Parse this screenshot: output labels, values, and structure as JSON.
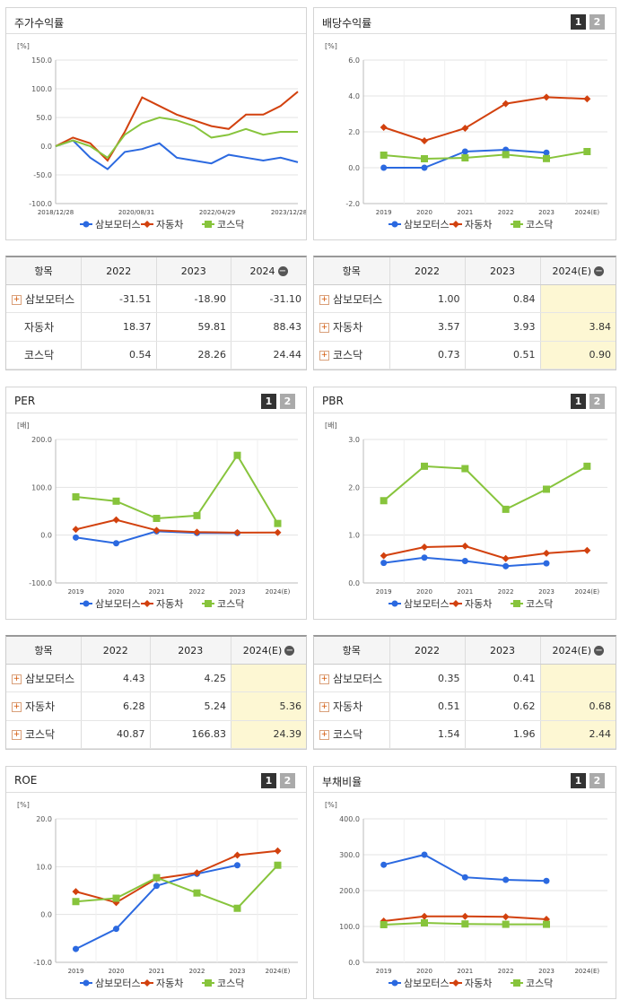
{
  "legend": [
    "삼보모터스",
    "자동차",
    "코스닥"
  ],
  "colors": {
    "s": "#2b69e0",
    "a": "#d2410e",
    "k": "#87c43c"
  },
  "btn1": "1",
  "btn2": "2",
  "charts": {
    "stock": {
      "title": "주가수익률",
      "unit": "[%]",
      "y_ticks": [
        "150.0",
        "100.0",
        "50.0",
        "0.0",
        "-50.0",
        "-100.0"
      ],
      "x_ticks": [
        "2018/12/28",
        "2020/08/31",
        "2022/04/29",
        "2023/12/28"
      ]
    },
    "div": {
      "title": "배당수익률",
      "unit": "[%]",
      "y_ticks": [
        "6.0",
        "4.0",
        "2.0",
        "0.0",
        "-2.0"
      ],
      "x_ticks": [
        "2019",
        "2020",
        "2021",
        "2022",
        "2023",
        "2024(E)"
      ]
    },
    "per": {
      "title": "PER",
      "unit": "[배]",
      "y_ticks": [
        "200.0",
        "100.0",
        "0.0",
        "-100.0"
      ],
      "x_ticks": [
        "2019",
        "2020",
        "2021",
        "2022",
        "2023",
        "2024(E)"
      ]
    },
    "pbr": {
      "title": "PBR",
      "unit": "[배]",
      "y_ticks": [
        "3.0",
        "2.0",
        "1.0",
        "0.0"
      ],
      "x_ticks": [
        "2019",
        "2020",
        "2021",
        "2022",
        "2023",
        "2024(E)"
      ]
    },
    "roe": {
      "title": "ROE",
      "unit": "[%]",
      "y_ticks": [
        "20.0",
        "10.0",
        "0.0",
        "-10.0"
      ],
      "x_ticks": [
        "2019",
        "2020",
        "2021",
        "2022",
        "2023",
        "2024(E)"
      ]
    },
    "debt": {
      "title": "부채비율",
      "unit": "[%]",
      "y_ticks": [
        "400.0",
        "300.0",
        "200.0",
        "100.0",
        "0.0"
      ],
      "x_ticks": [
        "2019",
        "2020",
        "2021",
        "2022",
        "2023",
        "2024(E)"
      ]
    }
  },
  "tables": {
    "stock": {
      "head": [
        "항목",
        "2022",
        "2023",
        "2024"
      ],
      "rows": [
        [
          "삼보모터스",
          "-31.51",
          "-18.90",
          "-31.10"
        ],
        [
          "자동차",
          "18.37",
          "59.81",
          "88.43"
        ],
        [
          "코스닥",
          "0.54",
          "28.26",
          "24.44"
        ]
      ]
    },
    "div": {
      "head": [
        "항목",
        "2022",
        "2023",
        "2024(E)"
      ],
      "rows": [
        [
          "삼보모터스",
          "1.00",
          "0.84",
          ""
        ],
        [
          "자동차",
          "3.57",
          "3.93",
          "3.84"
        ],
        [
          "코스닥",
          "0.73",
          "0.51",
          "0.90"
        ]
      ]
    },
    "per": {
      "head": [
        "항목",
        "2022",
        "2023",
        "2024(E)"
      ],
      "rows": [
        [
          "삼보모터스",
          "4.43",
          "4.25",
          ""
        ],
        [
          "자동차",
          "6.28",
          "5.24",
          "5.36"
        ],
        [
          "코스닥",
          "40.87",
          "166.83",
          "24.39"
        ]
      ]
    },
    "pbr": {
      "head": [
        "항목",
        "2022",
        "2023",
        "2024(E)"
      ],
      "rows": [
        [
          "삼보모터스",
          "0.35",
          "0.41",
          ""
        ],
        [
          "자동차",
          "0.51",
          "0.62",
          "0.68"
        ],
        [
          "코스닥",
          "1.54",
          "1.96",
          "2.44"
        ]
      ]
    }
  },
  "chart_data": [
    {
      "type": "line",
      "title": "주가수익률",
      "ylabel": "[%]",
      "ylim": [
        -100,
        150
      ],
      "x": [
        "2018/12/28",
        "2019/06",
        "2019/12",
        "2020/03",
        "2020/08/31",
        "2021/01",
        "2021/06",
        "2021/12",
        "2022/04/29",
        "2022/09",
        "2023/03",
        "2023/07",
        "2023/12/28",
        "2024/03",
        "2024/06"
      ],
      "series": [
        {
          "name": "삼보모터스",
          "values": [
            0,
            10,
            -20,
            -40,
            -10,
            -5,
            5,
            -20,
            -25,
            -30,
            -15,
            -20,
            -25,
            -20,
            -28
          ]
        },
        {
          "name": "자동차",
          "values": [
            0,
            15,
            5,
            -25,
            25,
            85,
            70,
            55,
            45,
            35,
            30,
            55,
            55,
            70,
            95
          ]
        },
        {
          "name": "코스닥",
          "values": [
            0,
            10,
            0,
            -20,
            20,
            40,
            50,
            45,
            35,
            15,
            20,
            30,
            20,
            25,
            25
          ]
        }
      ]
    },
    {
      "type": "line",
      "title": "배당수익률",
      "ylabel": "[%]",
      "ylim": [
        -2,
        6
      ],
      "x": [
        "2019",
        "2020",
        "2021",
        "2022",
        "2023",
        "2024(E)"
      ],
      "series": [
        {
          "name": "삼보모터스",
          "values": [
            0.0,
            0.0,
            0.9,
            1.0,
            0.84,
            null
          ]
        },
        {
          "name": "자동차",
          "values": [
            2.25,
            1.5,
            2.2,
            3.57,
            3.93,
            3.84
          ]
        },
        {
          "name": "코스닥",
          "values": [
            0.7,
            0.5,
            0.55,
            0.73,
            0.51,
            0.9
          ]
        }
      ]
    },
    {
      "type": "line",
      "title": "PER",
      "ylabel": "[배]",
      "ylim": [
        -100,
        200
      ],
      "x": [
        "2019",
        "2020",
        "2021",
        "2022",
        "2023",
        "2024(E)"
      ],
      "series": [
        {
          "name": "삼보모터스",
          "values": [
            -5,
            -17,
            8,
            4.43,
            4.25,
            null
          ]
        },
        {
          "name": "자동차",
          "values": [
            12,
            32,
            10,
            6.28,
            5.24,
            5.36
          ]
        },
        {
          "name": "코스닥",
          "values": [
            80,
            71,
            35,
            40.87,
            166.83,
            24.39
          ]
        }
      ]
    },
    {
      "type": "line",
      "title": "PBR",
      "ylabel": "[배]",
      "ylim": [
        0,
        3
      ],
      "x": [
        "2019",
        "2020",
        "2021",
        "2022",
        "2023",
        "2024(E)"
      ],
      "series": [
        {
          "name": "삼보모터스",
          "values": [
            0.42,
            0.53,
            0.46,
            0.35,
            0.41,
            null
          ]
        },
        {
          "name": "자동차",
          "values": [
            0.57,
            0.75,
            0.77,
            0.51,
            0.62,
            0.68
          ]
        },
        {
          "name": "코스닥",
          "values": [
            1.72,
            2.44,
            2.39,
            1.54,
            1.96,
            2.44
          ]
        }
      ]
    },
    {
      "type": "line",
      "title": "ROE",
      "ylabel": "[%]",
      "ylim": [
        -10,
        20
      ],
      "x": [
        "2019",
        "2020",
        "2021",
        "2022",
        "2023",
        "2024(E)"
      ],
      "series": [
        {
          "name": "삼보모터스",
          "values": [
            -7.2,
            -3.0,
            6.0,
            8.5,
            10.3,
            null
          ]
        },
        {
          "name": "자동차",
          "values": [
            4.8,
            2.5,
            7.5,
            8.7,
            12.4,
            13.3
          ]
        },
        {
          "name": "코스닥",
          "values": [
            2.7,
            3.4,
            7.7,
            4.5,
            1.3,
            10.3
          ]
        }
      ]
    },
    {
      "type": "line",
      "title": "부채비율",
      "ylabel": "[%]",
      "ylim": [
        0,
        400
      ],
      "x": [
        "2019",
        "2020",
        "2021",
        "2022",
        "2023",
        "2024(E)"
      ],
      "series": [
        {
          "name": "삼보모터스",
          "values": [
            272,
            300,
            237,
            230,
            227,
            null
          ]
        },
        {
          "name": "자동차",
          "values": [
            115,
            128,
            128,
            127,
            120,
            null
          ]
        },
        {
          "name": "코스닥",
          "values": [
            105,
            110,
            107,
            106,
            106,
            null
          ]
        }
      ]
    }
  ]
}
